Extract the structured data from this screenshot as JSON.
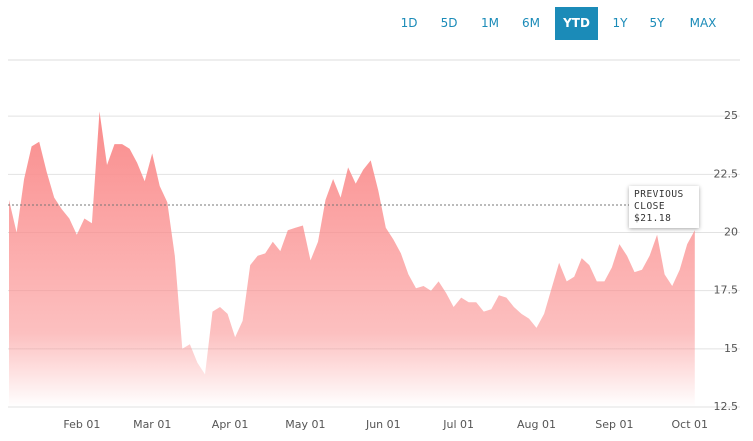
{
  "controls": {
    "buttons": [
      "1D",
      "5D",
      "1M",
      "6M",
      "YTD",
      "1Y",
      "5Y",
      "MAX"
    ],
    "active": "YTD"
  },
  "chart_data": {
    "type": "area",
    "x": [
      "Jan 03",
      "Jan 06",
      "Jan 09",
      "Jan 12",
      "Jan 15",
      "Jan 18",
      "Jan 21",
      "Jan 24",
      "Jan 27",
      "Jan 30",
      "Feb 02",
      "Feb 05",
      "Feb 08",
      "Feb 11",
      "Feb 14",
      "Feb 17",
      "Feb 20",
      "Feb 23",
      "Feb 26",
      "Mar 01",
      "Mar 04",
      "Mar 07",
      "Mar 10",
      "Mar 13",
      "Mar 16",
      "Mar 19",
      "Mar 22",
      "Mar 25",
      "Mar 28",
      "Mar 31",
      "Apr 03",
      "Apr 06",
      "Apr 09",
      "Apr 12",
      "Apr 15",
      "Apr 18",
      "Apr 21",
      "Apr 24",
      "Apr 27",
      "Apr 30",
      "May 03",
      "May 06",
      "May 09",
      "May 12",
      "May 15",
      "May 18",
      "May 21",
      "May 24",
      "May 27",
      "May 30",
      "Jun 02",
      "Jun 05",
      "Jun 08",
      "Jun 11",
      "Jun 14",
      "Jun 17",
      "Jun 20",
      "Jun 23",
      "Jun 26",
      "Jun 29",
      "Jul 02",
      "Jul 05",
      "Jul 08",
      "Jul 11",
      "Jul 14",
      "Jul 17",
      "Jul 20",
      "Jul 23",
      "Jul 26",
      "Jul 29",
      "Aug 01",
      "Aug 04",
      "Aug 07",
      "Aug 10",
      "Aug 13",
      "Aug 16",
      "Aug 19",
      "Aug 22",
      "Aug 25",
      "Aug 28",
      "Aug 31",
      "Sep 03",
      "Sep 06",
      "Sep 09",
      "Sep 12",
      "Sep 15",
      "Sep 18",
      "Sep 21",
      "Sep 24",
      "Sep 27",
      "Sep 30",
      "Oct 03"
    ],
    "values": [
      21.4,
      20.0,
      22.3,
      23.7,
      23.9,
      22.6,
      21.5,
      21.0,
      20.6,
      19.9,
      20.6,
      20.4,
      25.2,
      22.9,
      23.8,
      23.8,
      23.6,
      23.0,
      22.2,
      23.4,
      22.0,
      21.3,
      19.0,
      15.0,
      15.2,
      14.4,
      13.9,
      16.6,
      16.8,
      16.5,
      15.5,
      16.2,
      18.6,
      19.0,
      19.1,
      19.6,
      19.2,
      20.1,
      20.2,
      20.3,
      18.8,
      19.6,
      21.4,
      22.3,
      21.5,
      22.8,
      22.1,
      22.7,
      23.1,
      21.8,
      20.2,
      19.7,
      19.1,
      18.2,
      17.6,
      17.7,
      17.5,
      17.9,
      17.4,
      16.8,
      17.2,
      17.0,
      17.0,
      16.6,
      16.7,
      17.3,
      17.2,
      16.8,
      16.5,
      16.3,
      15.9,
      16.5,
      17.6,
      18.7,
      17.9,
      18.1,
      18.9,
      18.6,
      17.9,
      17.9,
      18.5,
      19.5,
      19.0,
      18.3,
      18.4,
      19.0,
      19.9,
      18.2,
      17.7,
      18.4,
      19.5,
      20.1
    ],
    "color": "#fa8c8c",
    "xlim": [
      "Jan 01",
      "Oct 21"
    ],
    "xticks": [
      "Feb 01",
      "Mar 01",
      "Apr 01",
      "May 01",
      "Jun 01",
      "Jul 01",
      "Aug 01",
      "Sep 01",
      "Oct 01"
    ],
    "ylim": [
      12.5,
      27.5
    ],
    "yticks": [
      12.5,
      15,
      17.5,
      20,
      22.5,
      25
    ],
    "grid": true,
    "annotation": {
      "label": "PREVIOUS CLOSE",
      "value": 21.18,
      "value_label": "$21.18"
    }
  }
}
